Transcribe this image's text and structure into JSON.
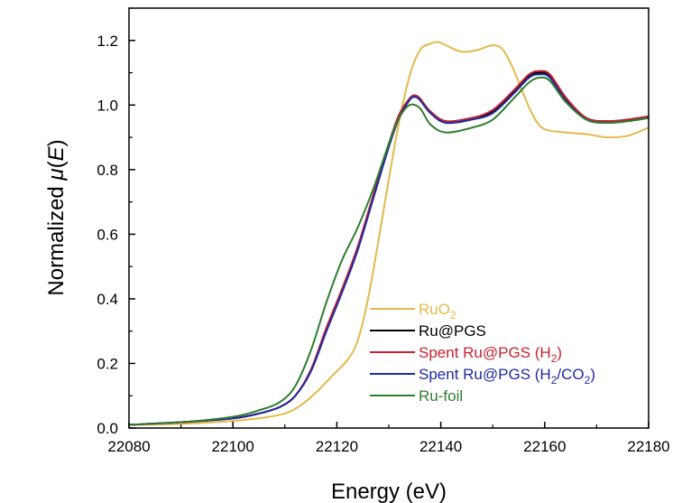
{
  "chart_data": {
    "type": "line",
    "title": "",
    "xlabel": "Energy (eV)",
    "ylabel": {
      "pre": "Normalized ",
      "mu": "μ",
      "open": "(",
      "var": "E",
      "close": ")"
    },
    "xlim": [
      22080,
      22180
    ],
    "ylim": [
      0.0,
      1.3
    ],
    "xticks": [
      22080,
      22100,
      22120,
      22140,
      22160,
      22180
    ],
    "xtick_labels": [
      "22080",
      "22100",
      "22120",
      "22140",
      "22160",
      "22180"
    ],
    "yticks": [
      0.0,
      0.2,
      0.4,
      0.6,
      0.8,
      1.0,
      1.2
    ],
    "ytick_labels": [
      "0.0",
      "0.2",
      "0.4",
      "0.6",
      "0.8",
      "1.0",
      "1.2"
    ],
    "grid": false,
    "legend_position": "bottom-right",
    "series": [
      {
        "name": "RuO2",
        "label": {
          "main": "RuO",
          "sub": "2",
          "tail": ""
        },
        "color": "#E3B94A",
        "x": [
          22080,
          22090,
          22100,
          22105,
          22110,
          22113,
          22116,
          22119,
          22122,
          22124,
          22126,
          22128,
          22130,
          22132,
          22134,
          22136,
          22138,
          22139.5,
          22141,
          22144,
          22147,
          22150,
          22152,
          22154,
          22156,
          22158,
          22160,
          22164,
          22168,
          22172,
          22176,
          22180
        ],
        "y": [
          0.01,
          0.013,
          0.022,
          0.03,
          0.045,
          0.07,
          0.11,
          0.16,
          0.21,
          0.27,
          0.4,
          0.58,
          0.77,
          0.95,
          1.09,
          1.17,
          1.19,
          1.195,
          1.185,
          1.165,
          1.17,
          1.185,
          1.17,
          1.11,
          1.03,
          0.96,
          0.925,
          0.915,
          0.91,
          0.9,
          0.905,
          0.93
        ]
      },
      {
        "name": "Ru@PGS",
        "label": {
          "main": "Ru@PGS",
          "sub": "",
          "tail": ""
        },
        "color": "#000000",
        "x": [
          22080,
          22090,
          22100,
          22105,
          22109,
          22112,
          22115,
          22118,
          22121,
          22124,
          22127,
          22130,
          22132,
          22134,
          22135,
          22136,
          22138,
          22141,
          22146,
          22150,
          22154,
          22157,
          22159,
          22161,
          22164,
          22168,
          22172,
          22176,
          22180
        ],
        "y": [
          0.01,
          0.018,
          0.03,
          0.045,
          0.065,
          0.1,
          0.18,
          0.31,
          0.43,
          0.56,
          0.72,
          0.88,
          0.97,
          1.02,
          1.03,
          1.02,
          0.98,
          0.95,
          0.96,
          0.98,
          1.04,
          1.09,
          1.1,
          1.09,
          1.02,
          0.96,
          0.95,
          0.955,
          0.965
        ]
      },
      {
        "name": "Spent Ru@PGS (H2)",
        "label": {
          "main": "Spent Ru@PGS (H",
          "sub": "2",
          "tail": ")"
        },
        "color": "#C8202F",
        "x": [
          22080,
          22090,
          22100,
          22105,
          22109,
          22112,
          22115,
          22118,
          22121,
          22124,
          22127,
          22130,
          22132,
          22134,
          22135,
          22136,
          22138,
          22141,
          22146,
          22150,
          22154,
          22157,
          22159,
          22161,
          22164,
          22168,
          22172,
          22176,
          22180
        ],
        "y": [
          0.01,
          0.018,
          0.03,
          0.045,
          0.065,
          0.1,
          0.18,
          0.31,
          0.43,
          0.56,
          0.72,
          0.88,
          0.97,
          1.02,
          1.03,
          1.02,
          0.98,
          0.95,
          0.96,
          0.985,
          1.045,
          1.095,
          1.105,
          1.095,
          1.025,
          0.96,
          0.95,
          0.955,
          0.965
        ]
      },
      {
        "name": "Spent Ru@PGS (H2/CO2)",
        "label": {
          "main": "Spent Ru@PGS (H",
          "sub": "2",
          "tail": "/CO",
          "sub2": "2",
          "tail2": ")"
        },
        "color": "#1F2AA0",
        "x": [
          22080,
          22090,
          22100,
          22105,
          22109,
          22112,
          22115,
          22118,
          22121,
          22124,
          22127,
          22130,
          22132,
          22134,
          22135,
          22136,
          22138,
          22141,
          22146,
          22150,
          22154,
          22157,
          22159,
          22161,
          22164,
          22168,
          22172,
          22176,
          22180
        ],
        "y": [
          0.01,
          0.018,
          0.03,
          0.045,
          0.065,
          0.1,
          0.175,
          0.3,
          0.42,
          0.55,
          0.71,
          0.87,
          0.96,
          1.015,
          1.025,
          1.015,
          0.975,
          0.945,
          0.955,
          0.975,
          1.035,
          1.085,
          1.095,
          1.085,
          1.015,
          0.955,
          0.945,
          0.95,
          0.96
        ]
      },
      {
        "name": "Ru-foil",
        "label": {
          "main": "Ru-foil",
          "sub": "",
          "tail": ""
        },
        "color": "#2E7D2E",
        "x": [
          22080,
          22090,
          22100,
          22105,
          22109,
          22112,
          22115,
          22118,
          22121,
          22124,
          22127,
          22130,
          22132,
          22134,
          22136,
          22138,
          22141,
          22146,
          22150,
          22154,
          22157,
          22159,
          22161,
          22164,
          22168,
          22172,
          22176,
          22180
        ],
        "y": [
          0.01,
          0.018,
          0.035,
          0.055,
          0.08,
          0.13,
          0.24,
          0.39,
          0.52,
          0.62,
          0.74,
          0.88,
          0.96,
          1.0,
          0.99,
          0.94,
          0.915,
          0.93,
          0.955,
          1.02,
          1.07,
          1.085,
          1.075,
          1.01,
          0.955,
          0.945,
          0.95,
          0.96
        ]
      }
    ]
  }
}
